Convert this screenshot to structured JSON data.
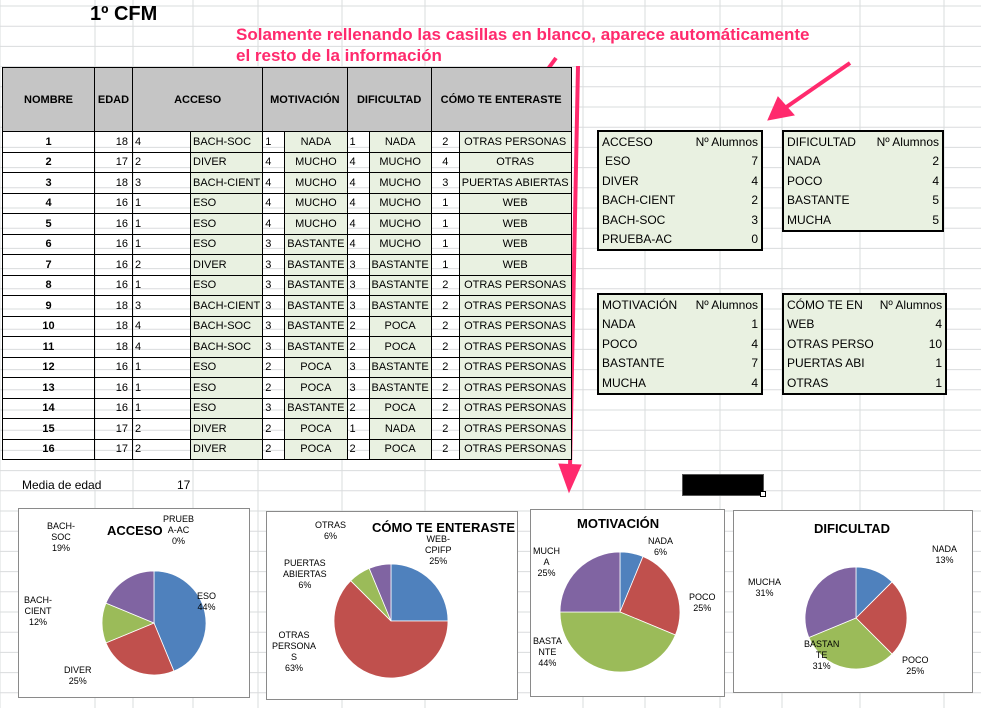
{
  "title": "1º CFM",
  "annotation": {
    "line1": "Solamente rellenando las casillas en blanco, aparece automáticamente",
    "line2": "el resto de la información"
  },
  "colors": {
    "arrow": "#ff2a6d",
    "header_bg": "#c5c5c5",
    "cell_green": "#e9f1e1",
    "blue": "#4f81bd",
    "red": "#c0504d",
    "green": "#9bbb59",
    "purple": "#8064a2"
  },
  "table": {
    "headers": [
      "NOMBRE",
      "EDAD",
      "ACCESO",
      "MOTIVACIÓN",
      "DIFICULTAD",
      "CÓMO TE ENTERASTE"
    ],
    "rows": [
      {
        "n": "1",
        "edad": "18",
        "acc_c": "4",
        "acc": "BACH-SOC",
        "mot_c": "1",
        "mot": "NADA",
        "dif_c": "1",
        "dif": "NADA",
        "com_c": "2",
        "com": "OTRAS PERSONAS"
      },
      {
        "n": "2",
        "edad": "17",
        "acc_c": "2",
        "acc": "DIVER",
        "mot_c": "4",
        "mot": "MUCHO",
        "dif_c": "4",
        "dif": "MUCHO",
        "com_c": "4",
        "com": "OTRAS"
      },
      {
        "n": "3",
        "edad": "18",
        "acc_c": "3",
        "acc": "BACH-CIENT",
        "mot_c": "4",
        "mot": "MUCHO",
        "dif_c": "4",
        "dif": "MUCHO",
        "com_c": "3",
        "com": "PUERTAS ABIERTAS"
      },
      {
        "n": "4",
        "edad": "16",
        "acc_c": "1",
        "acc": "ESO",
        "mot_c": "4",
        "mot": "MUCHO",
        "dif_c": "4",
        "dif": "MUCHO",
        "com_c": "1",
        "com": "WEB"
      },
      {
        "n": "5",
        "edad": "16",
        "acc_c": "1",
        "acc": "ESO",
        "mot_c": "4",
        "mot": "MUCHO",
        "dif_c": "4",
        "dif": "MUCHO",
        "com_c": "1",
        "com": "WEB"
      },
      {
        "n": "6",
        "edad": "16",
        "acc_c": "1",
        "acc": "ESO",
        "mot_c": "3",
        "mot": "BASTANTE",
        "dif_c": "4",
        "dif": "MUCHO",
        "com_c": "1",
        "com": "WEB"
      },
      {
        "n": "7",
        "edad": "16",
        "acc_c": "2",
        "acc": "DIVER",
        "mot_c": "3",
        "mot": "BASTANTE",
        "dif_c": "3",
        "dif": "BASTANTE",
        "com_c": "1",
        "com": "WEB"
      },
      {
        "n": "8",
        "edad": "16",
        "acc_c": "1",
        "acc": "ESO",
        "mot_c": "3",
        "mot": "BASTANTE",
        "dif_c": "3",
        "dif": "BASTANTE",
        "com_c": "2",
        "com": "OTRAS PERSONAS"
      },
      {
        "n": "9",
        "edad": "18",
        "acc_c": "3",
        "acc": "BACH-CIENT",
        "mot_c": "3",
        "mot": "BASTANTE",
        "dif_c": "3",
        "dif": "BASTANTE",
        "com_c": "2",
        "com": "OTRAS PERSONAS"
      },
      {
        "n": "10",
        "edad": "18",
        "acc_c": "4",
        "acc": "BACH-SOC",
        "mot_c": "3",
        "mot": "BASTANTE",
        "dif_c": "2",
        "dif": "POCA",
        "com_c": "2",
        "com": "OTRAS PERSONAS"
      },
      {
        "n": "11",
        "edad": "18",
        "acc_c": "4",
        "acc": "BACH-SOC",
        "mot_c": "3",
        "mot": "BASTANTE",
        "dif_c": "2",
        "dif": "POCA",
        "com_c": "2",
        "com": "OTRAS PERSONAS"
      },
      {
        "n": "12",
        "edad": "16",
        "acc_c": "1",
        "acc": "ESO",
        "mot_c": "2",
        "mot": "POCA",
        "dif_c": "3",
        "dif": "BASTANTE",
        "com_c": "2",
        "com": "OTRAS PERSONAS"
      },
      {
        "n": "13",
        "edad": "16",
        "acc_c": "1",
        "acc": "ESO",
        "mot_c": "2",
        "mot": "POCA",
        "dif_c": "3",
        "dif": "BASTANTE",
        "com_c": "2",
        "com": "OTRAS PERSONAS"
      },
      {
        "n": "14",
        "edad": "16",
        "acc_c": "1",
        "acc": "ESO",
        "mot_c": "3",
        "mot": "BASTANTE",
        "dif_c": "2",
        "dif": "POCA",
        "com_c": "2",
        "com": "OTRAS PERSONAS"
      },
      {
        "n": "15",
        "edad": "17",
        "acc_c": "2",
        "acc": "DIVER",
        "mot_c": "2",
        "mot": "POCA",
        "dif_c": "1",
        "dif": "NADA",
        "com_c": "2",
        "com": "OTRAS PERSONAS"
      },
      {
        "n": "16",
        "edad": "17",
        "acc_c": "2",
        "acc": "DIVER",
        "mot_c": "2",
        "mot": "POCA",
        "dif_c": "2",
        "dif": "POCA",
        "com_c": "2",
        "com": "OTRAS PERSONAS"
      }
    ]
  },
  "media": {
    "label": "Media de edad",
    "value": "17"
  },
  "summaries": [
    {
      "key": "acceso",
      "head": "ACCESO",
      "count_head": "Nº Alumnos",
      "rows": [
        [
          "ESO",
          "7"
        ],
        [
          "DIVER",
          "4"
        ],
        [
          "BACH-CIENT",
          "2"
        ],
        [
          "BACH-SOC",
          "3"
        ],
        [
          "PRUEBA-AC",
          "0"
        ]
      ]
    },
    {
      "key": "dificultad",
      "head": "DIFICULTAD",
      "count_head": "Nº Alumnos",
      "rows": [
        [
          "NADA",
          "2"
        ],
        [
          "POCO",
          "4"
        ],
        [
          "BASTANTE",
          "5"
        ],
        [
          "MUCHA",
          "5"
        ]
      ]
    },
    {
      "key": "motivacion",
      "head": "MOTIVACIÓN",
      "count_head": "Nº Alumnos",
      "rows": [
        [
          "NADA",
          "1"
        ],
        [
          "POCO",
          "4"
        ],
        [
          "BASTANTE",
          "7"
        ],
        [
          "MUCHA",
          "4"
        ]
      ]
    },
    {
      "key": "como",
      "head": "CÓMO TE EN",
      "count_head": "Nº Alumnos",
      "rows": [
        [
          "WEB",
          "4"
        ],
        [
          "OTRAS PERSO",
          "10"
        ],
        [
          "PUERTAS ABI",
          "1"
        ],
        [
          "OTRAS",
          "1"
        ]
      ]
    }
  ],
  "chart_data": [
    {
      "type": "pie",
      "title": "ACCESO",
      "labels": [
        "ESO\n44%",
        "DIVER\n25%",
        "BACH-\nCIENT\n12%",
        "BACH-\nSOC\n19%",
        "PRUEB\nA-AC\n0%"
      ],
      "values": [
        7,
        4,
        2,
        3,
        0
      ]
    },
    {
      "type": "pie",
      "title": "CÓMO TE ENTERASTE",
      "labels": [
        "WEB-\nCPIFP\n25%",
        "OTRAS\nPERSONA\nS\n63%",
        "PUERTAS\nABIERTAS\n6%",
        "OTRAS\n6%"
      ],
      "values": [
        4,
        10,
        1,
        1
      ]
    },
    {
      "type": "pie",
      "title": "MOTIVACIÓN",
      "labels": [
        "NADA\n6%",
        "POCO\n25%",
        "BASTA\nNTE\n44%",
        "MUCH\nA\n25%"
      ],
      "values": [
        1,
        4,
        7,
        4
      ]
    },
    {
      "type": "pie",
      "title": "DIFICULTAD",
      "labels": [
        "NADA\n13%",
        "POCO\n25%",
        "BASTAN\nTE\n31%",
        "MUCHA\n31%"
      ],
      "values": [
        2,
        4,
        5,
        5
      ]
    }
  ]
}
